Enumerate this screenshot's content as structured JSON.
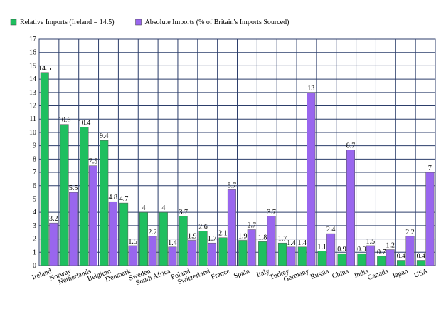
{
  "chart_data": {
    "type": "bar",
    "categories": [
      "Ireland",
      "Norway",
      "Netherlands",
      "Belgium",
      "Denmark",
      "Sweden",
      "South Africa",
      "Poland",
      "Switzerland",
      "France",
      "Spain",
      "Italy",
      "Turkey",
      "Germany",
      "Russia",
      "China",
      "India",
      "Canada",
      "Japan",
      "USA"
    ],
    "series": [
      {
        "name": "Relative Imports (Ireland = 14.5)",
        "color": "#1fbf5f",
        "values": [
          14.5,
          10.6,
          10.4,
          9.4,
          4.7,
          4,
          4,
          3.7,
          2.6,
          2.1,
          1.9,
          1.8,
          1.7,
          1.4,
          1.1,
          0.9,
          0.9,
          0.7,
          0.4,
          0.4
        ]
      },
      {
        "name": "Absolute Imports (% of Britain's Imports Sourced)",
        "color": "#9966ee",
        "values": [
          3.2,
          5.5,
          7.5,
          4.8,
          1.5,
          2.2,
          1.4,
          1.9,
          1.7,
          5.7,
          2.7,
          3.7,
          1.4,
          13,
          2.4,
          8.7,
          1.5,
          1.2,
          2.2,
          7
        ]
      }
    ],
    "ylim": [
      0,
      17
    ],
    "yticks": [
      0,
      1,
      2,
      3,
      4,
      5,
      6,
      7,
      8,
      9,
      10,
      11,
      12,
      13,
      14,
      15,
      16,
      17
    ],
    "grid": true
  }
}
